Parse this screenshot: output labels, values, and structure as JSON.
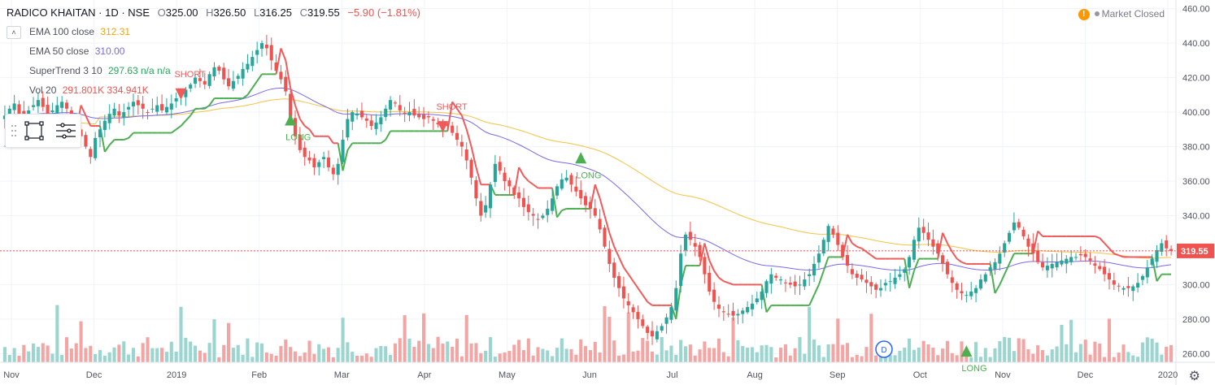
{
  "header": {
    "symbol": "RADICO KHAITAN · 1D · NSE",
    "open_label": "O",
    "open": "325.00",
    "high_label": "H",
    "high": "326.50",
    "low_label": "L",
    "low": "316.25",
    "close_label": "C",
    "close": "319.55",
    "change": "−5.90 (−1.81%)"
  },
  "indicators": [
    {
      "name": "EMA 100 close",
      "values": "312.31",
      "color": "#f0a30a"
    },
    {
      "name": "EMA 50 close",
      "values": "310.00",
      "color": "#7b68ee"
    },
    {
      "name": "SuperTrend 3 10",
      "values": "297.63  n/a  n/a",
      "color": "#26a65b"
    },
    {
      "name": "Vol 20",
      "values": "291.801K  334.941K",
      "color": "#ef5350"
    }
  ],
  "status": {
    "market": "Market Closed",
    "warning_icon": "!"
  },
  "colors": {
    "up": "#26a69a",
    "down": "#ef5350",
    "ema100": "#f5c242",
    "ema50": "#7b68ee",
    "st_up": "#4caf50",
    "st_down": "#f05a5a",
    "price_line": "#ef5350"
  },
  "chart_data": {
    "type": "candlestick",
    "ylim": [
      255,
      465
    ],
    "y_ticks": [
      "260.00",
      "280.00",
      "300.00",
      "320.00",
      "340.00",
      "360.00",
      "380.00",
      "400.00",
      "420.00",
      "440.00",
      "460.00"
    ],
    "x_ticks": [
      "Nov",
      "Dec",
      "2019",
      "Feb",
      "Mar",
      "Apr",
      "May",
      "Jun",
      "Jul",
      "Aug",
      "Sep",
      "Oct",
      "Nov",
      "Dec",
      "2020"
    ],
    "last_price_label": "319.55",
    "last_price": 319.55,
    "signals": [
      {
        "type": "SHORT",
        "price": 410
      },
      {
        "type": "LONG",
        "price": 396
      },
      {
        "type": "SHORT",
        "price": 391
      },
      {
        "type": "LONG",
        "price": 374
      },
      {
        "type": "LONG",
        "price": 262
      }
    ],
    "closes": [
      398,
      402,
      405,
      399,
      396,
      401,
      404,
      407,
      403,
      399,
      401,
      404,
      406,
      402,
      395,
      390,
      386,
      380,
      374,
      385,
      390,
      395,
      399,
      402,
      398,
      400,
      403,
      406,
      404,
      402,
      400,
      402,
      404,
      401,
      403,
      405,
      408,
      410,
      413,
      416,
      420,
      418,
      416,
      422,
      426,
      424,
      419,
      415,
      418,
      421,
      425,
      428,
      432,
      436,
      440,
      437,
      430,
      424,
      419,
      412,
      396,
      386,
      378,
      374,
      372,
      368,
      371,
      374,
      368,
      364,
      370,
      384,
      396,
      400,
      399,
      397,
      395,
      392,
      394,
      397,
      402,
      407,
      405,
      401,
      399,
      400,
      398,
      397,
      396,
      397,
      395,
      393,
      391,
      392,
      388,
      384,
      380,
      372,
      362,
      350,
      340,
      346,
      358,
      370,
      366,
      360,
      357,
      352,
      350,
      345,
      342,
      340,
      338,
      340,
      344,
      350,
      357,
      361,
      362,
      358,
      354,
      350,
      346,
      344,
      340,
      332,
      322,
      312,
      304,
      298,
      292,
      288,
      284,
      280,
      276,
      272,
      270,
      273,
      276,
      281,
      287,
      298,
      318,
      329,
      326,
      322,
      316,
      306,
      296,
      290,
      286,
      284,
      283,
      282,
      283,
      285,
      287,
      289,
      292,
      296,
      302,
      306,
      304,
      303,
      301,
      300,
      299,
      300,
      303,
      306,
      312,
      318,
      326,
      334,
      329,
      323,
      316,
      311,
      306,
      304,
      303,
      301,
      299,
      297,
      298,
      301,
      302,
      304,
      306,
      309,
      316,
      326,
      333,
      330,
      326,
      322,
      318,
      312,
      306,
      301,
      297,
      295,
      294,
      296,
      298,
      303,
      306,
      310,
      313,
      318,
      324,
      330,
      336,
      333,
      328,
      322,
      318,
      313,
      310,
      311,
      312,
      313,
      314,
      315,
      316,
      316,
      317,
      316,
      314,
      311,
      309,
      306,
      303,
      300,
      299,
      298,
      298,
      299,
      301,
      305,
      310,
      315,
      320,
      324,
      321,
      319.55
    ]
  }
}
